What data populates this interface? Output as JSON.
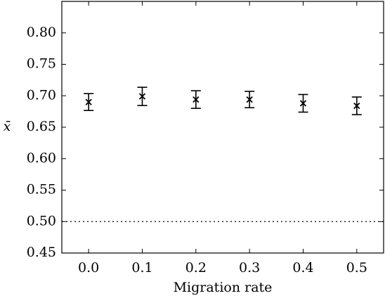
{
  "chart_data": {
    "type": "errorbar",
    "xlabel": "Migration rate",
    "ylabel": "x̄",
    "x": [
      0.0,
      0.1,
      0.2,
      0.3,
      0.4,
      0.5
    ],
    "values": [
      0.69,
      0.699,
      0.694,
      0.694,
      0.688,
      0.684
    ],
    "errors": [
      0.0134,
      0.0145,
      0.014,
      0.013,
      0.014,
      0.014
    ],
    "color": "#000000",
    "reference_line": 0.5,
    "xlim": [
      -0.05,
      0.55
    ],
    "ylim": [
      0.45,
      0.85
    ],
    "xticks": [
      {
        "value": 0.0,
        "label": "0.0"
      },
      0.1,
      0.2,
      0.3,
      0.4,
      0.5
    ],
    "yticks": [
      {
        "value": 0.45,
        "label": "0.45"
      },
      {
        "value": 0.5,
        "label": "0.50"
      },
      {
        "value": 0.55,
        "label": "0.55"
      },
      {
        "value": 0.6,
        "label": "0.60"
      },
      {
        "value": 0.65,
        "label": "0.65"
      },
      {
        "value": 0.7,
        "label": "0.70"
      },
      {
        "value": 0.75,
        "label": "0.75"
      },
      {
        "value": 0.8,
        "label": "0.80"
      }
    ]
  }
}
